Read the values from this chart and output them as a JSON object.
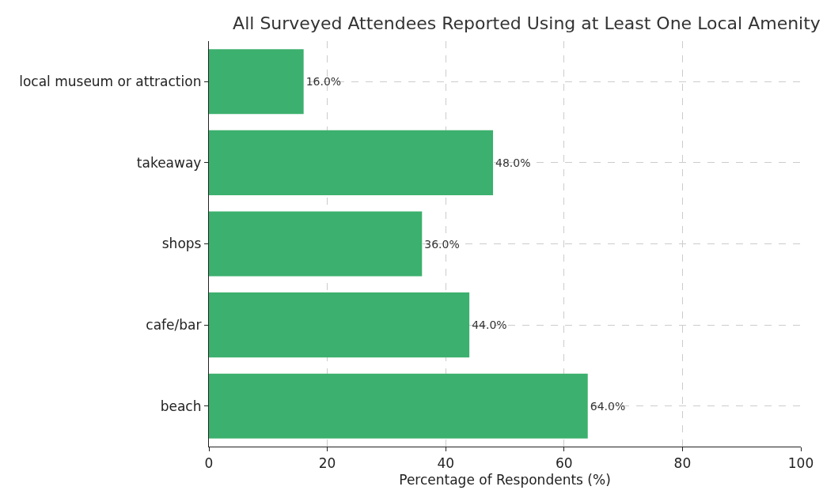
{
  "chart_data": {
    "type": "bar",
    "orientation": "horizontal",
    "title": "All Surveyed Attendees Reported Using at Least One Local Amenity",
    "xlabel": "Percentage of Respondents (%)",
    "categories": [
      "local museum or attraction",
      "takeaway",
      "shops",
      "cafe/bar",
      "beach"
    ],
    "values": [
      16,
      48,
      36,
      44,
      64
    ],
    "value_labels": [
      "16.0%",
      "48.0%",
      "36.0%",
      "44.0%",
      "64.0%"
    ],
    "color": "#3cb06e",
    "xlim": [
      0,
      100
    ],
    "xticks": [
      0,
      20,
      40,
      60,
      80,
      100
    ],
    "grid": true,
    "legend": false
  }
}
